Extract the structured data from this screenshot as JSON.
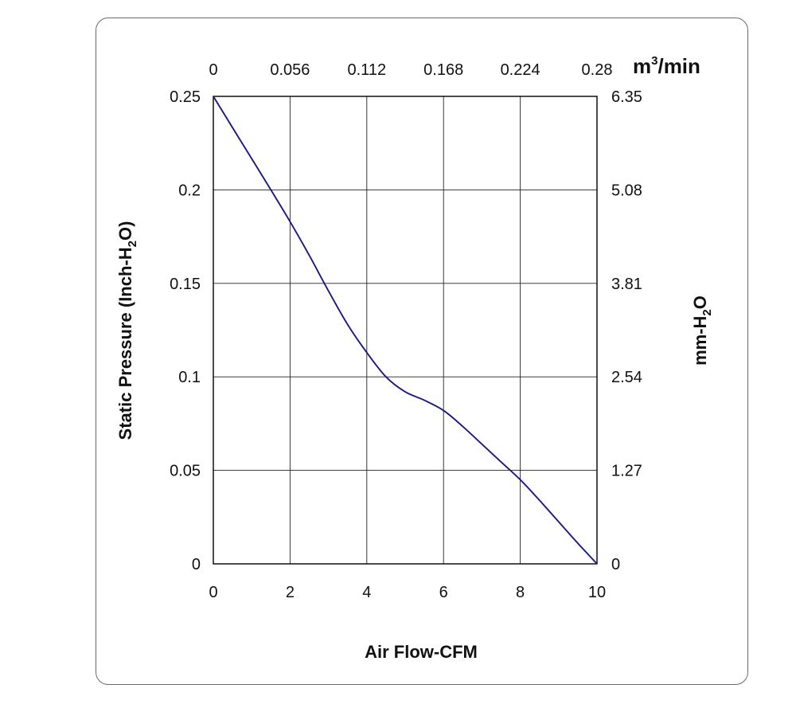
{
  "chart_data": {
    "type": "line",
    "xlabel": "Air Flow-CFM",
    "ylabel": "Static Pressure (Inch-H2O)",
    "ylabel_parts": {
      "before": "Static Pressure (Inch-H",
      "sub": "2",
      "after": "O)"
    },
    "y2label": "mm-H2O",
    "y2label_parts": {
      "before": "mm-H",
      "sub": "2",
      "after": "O"
    },
    "x2label": "m3/min",
    "x2label_parts": {
      "base": "m",
      "sup": "3",
      "after": "/min"
    },
    "xlim": [
      0,
      10
    ],
    "ylim": [
      0,
      0.25
    ],
    "x_ticks": [
      "0",
      "2",
      "4",
      "6",
      "8",
      "10"
    ],
    "y_ticks": [
      "0",
      "0.05",
      "0.1",
      "0.15",
      "0.2",
      "0.25"
    ],
    "y2_ticks": [
      "0",
      "1.27",
      "2.54",
      "3.81",
      "5.08",
      "6.35"
    ],
    "x2_ticks": [
      "0",
      "0.056",
      "0.112",
      "0.168",
      "0.224",
      "0.28"
    ],
    "grid": true,
    "line_color": "#1a1a80",
    "series": [
      {
        "x": [
          0,
          0.5,
          1,
          1.5,
          2,
          2.5,
          3,
          3.5,
          4,
          4.5,
          5,
          5.5,
          6,
          6.5,
          7,
          7.5,
          8,
          8.5,
          9,
          9.5,
          10
        ],
        "y": [
          0.25,
          0.2333,
          0.2167,
          0.2,
          0.183,
          0.165,
          0.146,
          0.128,
          0.113,
          0.1,
          0.092,
          0.0875,
          0.082,
          0.0735,
          0.064,
          0.0545,
          0.045,
          0.034,
          0.0225,
          0.011,
          0
        ]
      }
    ]
  }
}
